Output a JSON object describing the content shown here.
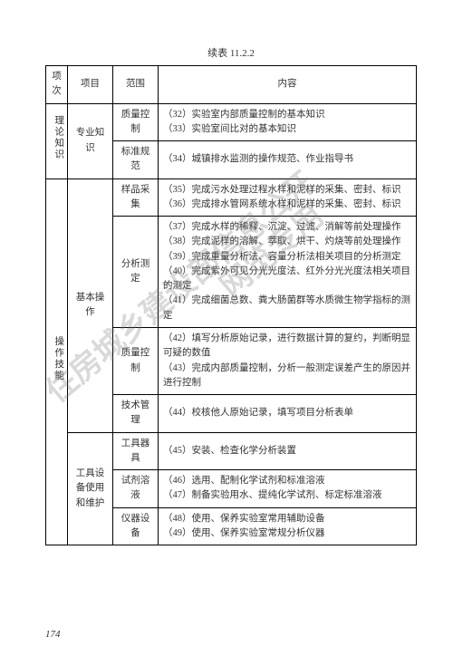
{
  "caption": "续表 11.2.2",
  "header": {
    "c1": "项次",
    "c2": "项目",
    "c3": "范围",
    "c4": "内容"
  },
  "rows": [
    {
      "c1": "理论知识",
      "c1rows": 2,
      "c2": "专业知识",
      "c2rows": 2,
      "c3": "质量控制",
      "c4": "（32）实验室内部质量控制的基本知识\n（33）实验室间比对的基本知识"
    },
    {
      "c3": "标准规范",
      "c4": "（34）城镇排水监测的操作规范、作业指导书"
    },
    {
      "c1": "操作技能",
      "c1rows": 7,
      "c2": "基本操作",
      "c2rows": 4,
      "c3": "样品采集",
      "c4": "（35）完成污水处理过程水样和泥样的采集、密封、标识\n（36）完成排水管网系统水样和泥样的采集、密封、标识"
    },
    {
      "c3": "分析测定",
      "c4": "（37）完成水样的稀释、沉淀、过滤、消解等前处理操作\n（38）完成泥样的溶解、萃取、烘干、灼烧等前处理操作\n（39）完成重量分析法、容量分析法相关项目的分析测定\n（40）完成紫外可见分光光度法、红外分光光度法相关项目的测定\n（41）完成细菌总数、粪大肠菌群等水质微生物学指标的测定"
    },
    {
      "c3": "质量控制",
      "c4": "（42）填写分析原始记录，进行数据计算的复约，判断明显可疑的数值\n（43）完成内部质量控制，分析一般测定误差产生的原因并进行控制"
    },
    {
      "c3": "技术管理",
      "c4": "（44）校核他人原始记录，填写项目分析表单"
    },
    {
      "c2": "工具设备使用和维护",
      "c2rows": 3,
      "c3": "工具器具",
      "c4": "（45）安装、检查化学分析装置"
    },
    {
      "c3": "试剂溶液",
      "c4": "（46）选用、配制化学试剂和标准溶液\n（47）制备实验用水、提纯化学试剂、标定标准溶液"
    },
    {
      "c3": "仪器设备",
      "c4": "（48）使用、保养实验室常用辅助设备\n（49）使用、保养实验室常规分析仪器"
    }
  ],
  "pagenum": "174",
  "watermark1": "住房城乡建设部信息公开",
  "watermark2": "网览专用",
  "colors": {
    "text": "#333333",
    "border": "#000000",
    "wm": "rgba(120,120,120,0.28)",
    "bg": "#ffffff"
  },
  "fontsizes": {
    "body": 11,
    "cell": 10.5,
    "wm": 34
  }
}
